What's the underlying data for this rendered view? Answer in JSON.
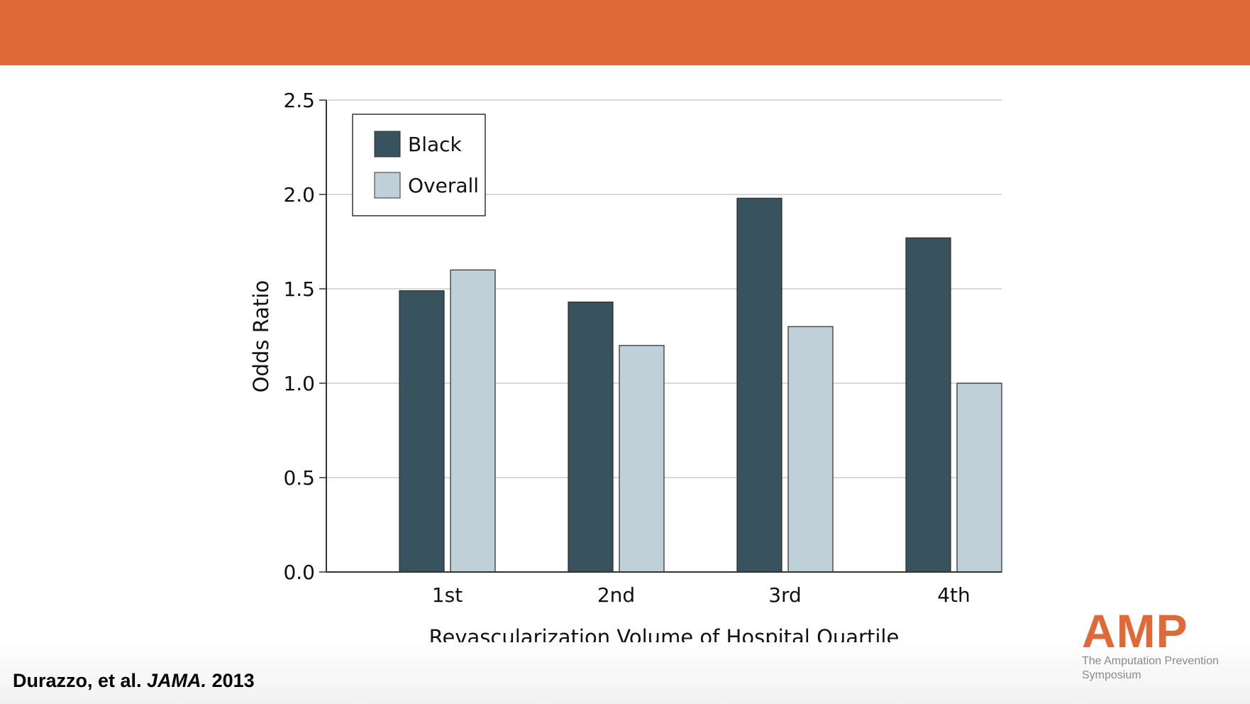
{
  "colors": {
    "header": "#e06a37",
    "black_series": "#38525e",
    "overall_series": "#c0d0d8",
    "grid": "#d9d9d9",
    "axis": "#333333",
    "logo_orange": "#e06a37"
  },
  "citation": {
    "authors": "Durazzo, et al. ",
    "journal": "JAMA.",
    "year": " 2013"
  },
  "logo": {
    "mark": "AMP",
    "subtitle": "The Amputation Prevention Symposium"
  },
  "chart_data": {
    "type": "bar",
    "title": "",
    "xlabel": "Revascularization Volume of Hospital Quartile",
    "ylabel": "Odds Ratio",
    "categories": [
      "1st",
      "2nd",
      "3rd",
      "4th"
    ],
    "series": [
      {
        "name": "Black",
        "values": [
          1.49,
          1.43,
          1.98,
          1.77
        ]
      },
      {
        "name": "Overall",
        "values": [
          1.6,
          1.2,
          1.3,
          1.0
        ]
      }
    ],
    "ylim": [
      0,
      2.5
    ],
    "yticks": [
      "0.0",
      "0.5",
      "1.0",
      "1.5",
      "2.0",
      "2.5"
    ],
    "ytick_values": [
      0,
      0.5,
      1.0,
      1.5,
      2.0,
      2.5
    ],
    "grid": true,
    "legend": "top-left"
  }
}
